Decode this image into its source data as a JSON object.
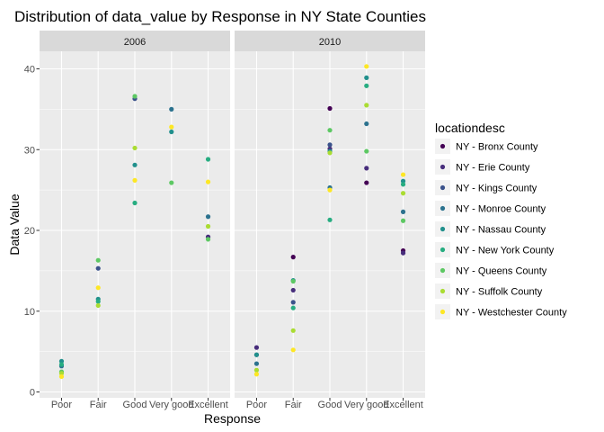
{
  "chart_data": {
    "type": "scatter",
    "title": "Distribution of data_value by Response in NY State Counties",
    "xlabel": "Response",
    "ylabel": "Data Value",
    "categories": [
      "Poor",
      "Fair",
      "Good",
      "Very good",
      "Excellent"
    ],
    "ylim": [
      0,
      42
    ],
    "yticks": [
      0,
      10,
      20,
      30,
      40
    ],
    "grid": true,
    "legend_title": "locationdesc",
    "legend_position": "right",
    "facets": [
      "2006",
      "2010"
    ],
    "series": [
      {
        "name": "NY - Bronx County",
        "color": "#440154",
        "values": {
          "2006": [
            null,
            null,
            null,
            null,
            null
          ],
          "2010": [
            null,
            16.7,
            35.1,
            25.9,
            17.5
          ]
        }
      },
      {
        "name": "NY - Erie County",
        "color": "#472D7B",
        "values": {
          "2006": [
            null,
            null,
            null,
            null,
            19.2
          ],
          "2010": [
            5.5,
            12.6,
            30.1,
            27.7,
            17.2
          ]
        }
      },
      {
        "name": "NY - Kings County",
        "color": "#3B528B",
        "values": {
          "2006": [
            null,
            15.3,
            36.3,
            null,
            null
          ],
          "2010": [
            4.6,
            11.1,
            30.6,
            null,
            null
          ]
        }
      },
      {
        "name": "NY - Monroe County",
        "color": "#2C728E",
        "values": {
          "2006": [
            3.2,
            null,
            null,
            35.0,
            21.7
          ],
          "2010": [
            3.5,
            null,
            25.3,
            33.2,
            22.3
          ]
        }
      },
      {
        "name": "NY - Nassau County",
        "color": "#21908C",
        "values": {
          "2006": [
            3.8,
            11.5,
            28.1,
            32.2,
            null
          ],
          "2010": [
            4.6,
            13.8,
            29.8,
            38.9,
            26.1
          ]
        }
      },
      {
        "name": "NY - New York County",
        "color": "#27AD81",
        "values": {
          "2006": [
            3.4,
            11.2,
            23.4,
            null,
            28.8
          ],
          "2010": [
            null,
            10.4,
            21.3,
            37.9,
            25.7
          ]
        }
      },
      {
        "name": "NY - Queens County",
        "color": "#5DC863",
        "values": {
          "2006": [
            2.5,
            16.3,
            36.6,
            25.9,
            18.9
          ],
          "2010": [
            null,
            13.7,
            32.4,
            29.8,
            21.2
          ]
        }
      },
      {
        "name": "NY - Suffolk County",
        "color": "#AADC32",
        "values": {
          "2006": [
            2.3,
            10.7,
            30.2,
            null,
            20.5
          ],
          "2010": [
            2.7,
            7.6,
            29.6,
            35.5,
            24.6
          ]
        }
      },
      {
        "name": "NY - Westchester County",
        "color": "#FDE725",
        "values": {
          "2006": [
            1.9,
            12.9,
            26.2,
            32.8,
            26.0
          ],
          "2010": [
            2.2,
            5.2,
            25.0,
            40.3,
            26.9
          ]
        }
      }
    ]
  }
}
